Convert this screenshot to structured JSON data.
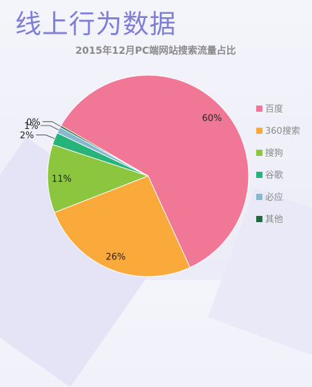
{
  "page": {
    "title": "线上行为数据"
  },
  "chart_data": {
    "type": "pie",
    "title": "2015年12月PC端网站搜索流量占比",
    "legend_position": "right",
    "slices": [
      {
        "label": "百度",
        "value": 60,
        "display": "60%",
        "color": "#f07896"
      },
      {
        "label": "360搜索",
        "value": 26,
        "display": "26%",
        "color": "#faa93b"
      },
      {
        "label": "搜狗",
        "value": 11,
        "display": "11%",
        "color": "#8cc63f"
      },
      {
        "label": "谷歌",
        "value": 2,
        "display": "2%",
        "color": "#27b47a"
      },
      {
        "label": "必应",
        "value": 1,
        "display": "1%",
        "color": "#88b8d0"
      },
      {
        "label": "其他",
        "value": 0.3,
        "display": "0%",
        "color": "#1c6b3a"
      }
    ]
  }
}
